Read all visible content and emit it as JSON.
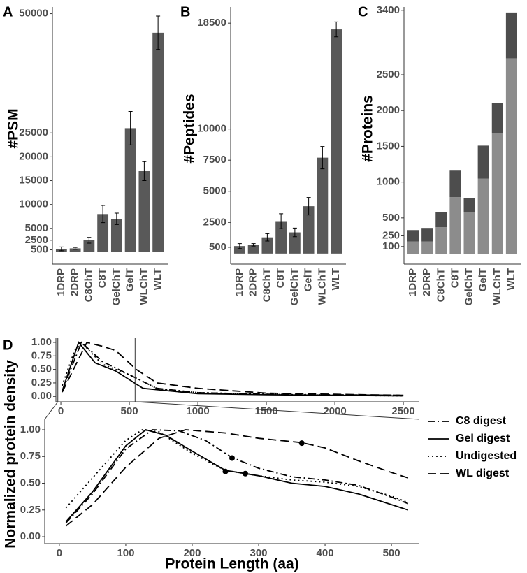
{
  "chart_data": [
    {
      "type": "bar",
      "panel": "A",
      "ylabel": "#PSM",
      "categories": [
        "1DRP",
        "2DRP",
        "C8ChT",
        "C8T",
        "GelChT",
        "GelT",
        "WLChT",
        "WLT"
      ],
      "values": [
        700,
        800,
        2500,
        8000,
        7000,
        26000,
        17000,
        46000
      ],
      "errors": [
        400,
        200,
        600,
        1800,
        1200,
        3500,
        2000,
        3500
      ],
      "color": "#595959",
      "ylim": [
        -2500,
        51400
      ],
      "yticks": [
        500,
        2500,
        5000,
        10000,
        15000,
        20000,
        25000,
        50000
      ]
    },
    {
      "type": "bar",
      "panel": "B",
      "ylabel": "#Peptides",
      "categories": [
        "1DRP",
        "2DRP",
        "C8ChT",
        "C8T",
        "GelChT",
        "GelT",
        "WLChT",
        "WLT"
      ],
      "values": [
        600,
        700,
        1300,
        2600,
        1700,
        3800,
        7700,
        18000
      ],
      "errors": [
        200,
        100,
        300,
        600,
        350,
        700,
        900,
        600
      ],
      "color": "#595959",
      "ylim": [
        -850,
        19800
      ],
      "yticks": [
        500,
        2500,
        5000,
        7500,
        10000,
        18500
      ]
    },
    {
      "type": "bar",
      "panel": "C",
      "ylabel": "#Proteins",
      "stacked": true,
      "categories": [
        "1DRP",
        "2DRP",
        "C8ChT",
        "C8T",
        "GelChT",
        "GelT",
        "WLChT",
        "WLT"
      ],
      "series": [
        {
          "color": "#8c8c8c",
          "values": [
            170,
            170,
            370,
            790,
            580,
            1050,
            1680,
            2730
          ]
        },
        {
          "color": "#4d4d4d",
          "values": [
            160,
            190,
            210,
            380,
            200,
            460,
            420,
            640
          ]
        }
      ],
      "ylim": [
        -146,
        3447
      ],
      "yticks": [
        100,
        250,
        500,
        1000,
        1500,
        2000,
        2500,
        3400
      ]
    },
    {
      "type": "line",
      "panel": "D",
      "xlim": [
        -36,
        2617
      ],
      "ylim": [
        -0.1,
        1.09
      ],
      "xticks": [
        0,
        500,
        1000,
        1500,
        2000,
        2500
      ],
      "yticks": [
        {
          "value": 0,
          "label": "0.00"
        },
        {
          "value": 0.25,
          "label": "0.25"
        },
        {
          "value": 0.5,
          "label": "0.50"
        },
        {
          "value": 0.75,
          "label": "0.75"
        },
        {
          "value": 1,
          "label": "1.00"
        }
      ],
      "series": [
        {
          "dash": "dashdot",
          "color": "#000000",
          "x": [
            10,
            150,
            300,
            500,
            700,
            1000,
            1500,
            2500
          ],
          "values": [
            0.1,
            1.0,
            0.65,
            0.4,
            0.15,
            0.07,
            0.04,
            0.02
          ]
        },
        {
          "dash": "solid",
          "color": "#000000",
          "x": [
            10,
            130,
            250,
            400,
            600,
            1000,
            1500,
            2000,
            2500
          ],
          "values": [
            0.1,
            1.0,
            0.62,
            0.47,
            0.15,
            0.05,
            0.03,
            0.02,
            0.01
          ]
        },
        {
          "dash": "dotted",
          "color": "#000000",
          "x": [
            10,
            100,
            150,
            300,
            500,
            700,
            1000,
            1500,
            2000,
            2500
          ],
          "values": [
            0.2,
            0.85,
            1.0,
            0.6,
            0.4,
            0.15,
            0.07,
            0.04,
            0.02,
            0.01
          ]
        },
        {
          "dash": "dashed",
          "color": "#000000",
          "x": [
            10,
            190,
            300,
            400,
            550,
            700,
            1000,
            1500,
            2000,
            2500
          ],
          "values": [
            0.08,
            1.0,
            0.93,
            0.85,
            0.5,
            0.25,
            0.15,
            0.06,
            0.04,
            0.02
          ]
        }
      ]
    },
    {
      "type": "line",
      "xlabel": "Protein Length (aa)",
      "ylabel": "Normalized protein density",
      "xlim": [
        -22,
        542
      ],
      "ylim": [
        -0.065,
        1.098
      ],
      "xticks": [
        0,
        100,
        200,
        300,
        400,
        500
      ],
      "yticks": [
        {
          "value": 0,
          "label": "0.00"
        },
        {
          "value": 0.25,
          "label": "0.25"
        },
        {
          "value": 0.5,
          "label": "0.50"
        },
        {
          "value": 0.75,
          "label": "0.75"
        },
        {
          "value": 1,
          "label": "1.00"
        }
      ],
      "legend": "right",
      "series": [
        {
          "name": "C8 digest",
          "dash": "dashdot",
          "color": "#000000",
          "x": [
            10,
            50,
            100,
            140,
            180,
            220,
            260,
            300,
            350,
            400,
            450,
            500,
            525
          ],
          "values": [
            0.13,
            0.4,
            0.82,
            1.0,
            0.99,
            0.9,
            0.74,
            0.64,
            0.56,
            0.53,
            0.48,
            0.37,
            0.31
          ],
          "marker_x": 260,
          "marker_y": 0.735
        },
        {
          "name": "Gel digest",
          "dash": "solid",
          "color": "#000000",
          "x": [
            10,
            50,
            100,
            130,
            160,
            200,
            250,
            300,
            350,
            400,
            450,
            500,
            525
          ],
          "values": [
            0.14,
            0.42,
            0.85,
            1.0,
            0.95,
            0.8,
            0.62,
            0.57,
            0.5,
            0.47,
            0.4,
            0.3,
            0.25
          ],
          "marker_x": 280,
          "marker_y": 0.59
        },
        {
          "name": "Undigested",
          "dash": "dotted",
          "color": "#000000",
          "x": [
            10,
            50,
            100,
            125,
            150,
            200,
            250,
            300,
            350,
            400,
            450,
            500,
            525
          ],
          "values": [
            0.27,
            0.55,
            0.9,
            1.0,
            0.98,
            0.78,
            0.62,
            0.57,
            0.53,
            0.51,
            0.47,
            0.38,
            0.32
          ],
          "marker_x": 250,
          "marker_y": 0.61
        },
        {
          "name": "WL digest",
          "dash": "dashed",
          "color": "#000000",
          "x": [
            10,
            50,
            100,
            150,
            190,
            250,
            300,
            365,
            400,
            450,
            500,
            525
          ],
          "values": [
            0.1,
            0.3,
            0.65,
            0.92,
            1.0,
            0.97,
            0.92,
            0.88,
            0.83,
            0.71,
            0.6,
            0.55
          ],
          "marker_x": 365,
          "marker_y": 0.875
        }
      ]
    }
  ]
}
